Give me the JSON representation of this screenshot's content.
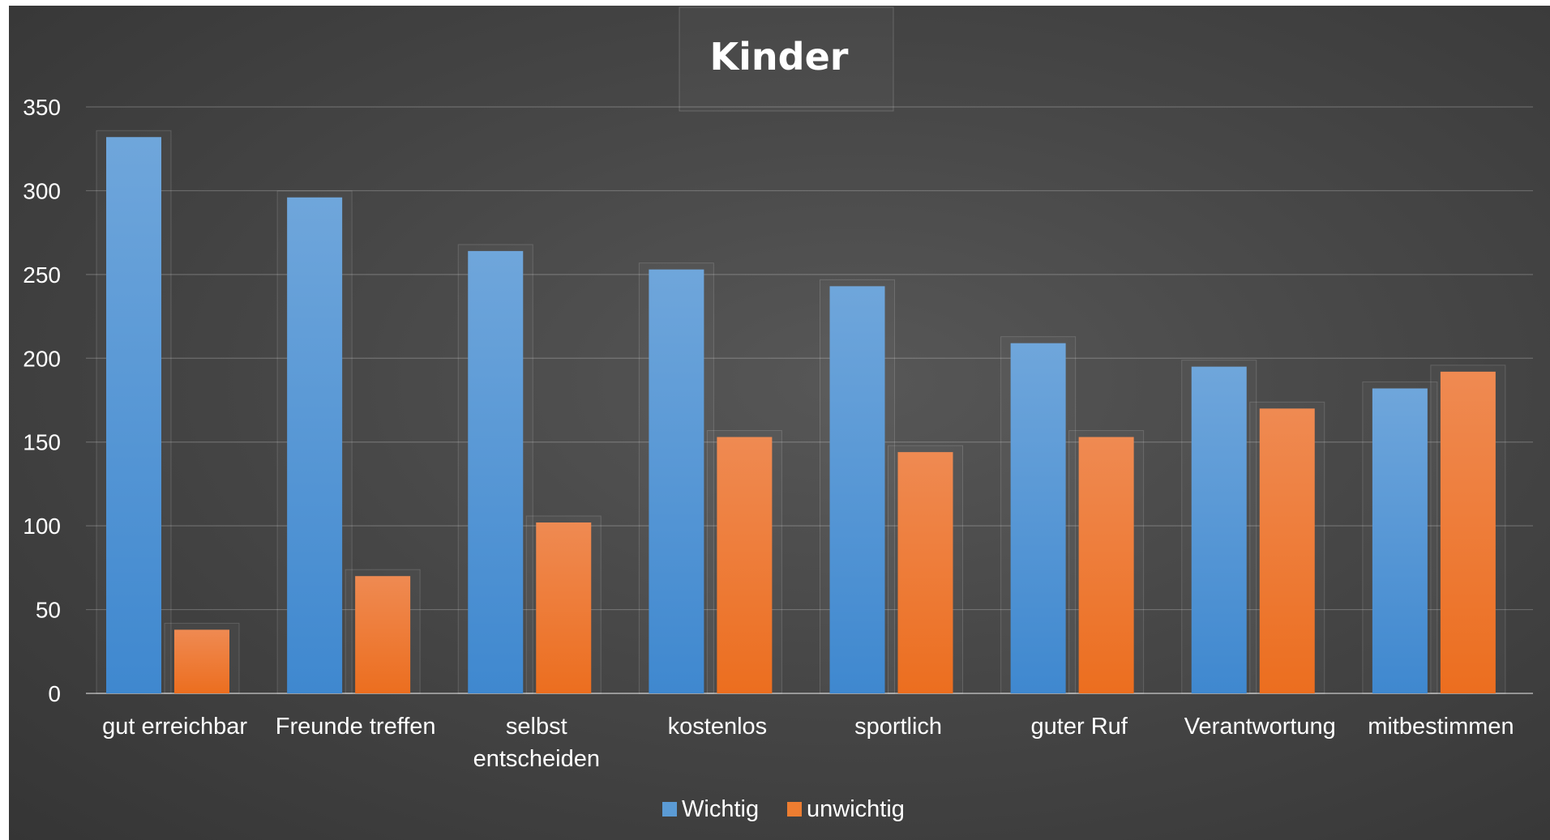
{
  "chart_data": {
    "type": "bar",
    "title": "Kinder",
    "categories": [
      [
        "gut erreichbar"
      ],
      [
        "Freunde treffen"
      ],
      [
        "selbst",
        "entscheiden"
      ],
      [
        "kostenlos"
      ],
      [
        "sportlich"
      ],
      [
        "guter Ruf"
      ],
      [
        "Verantwortung"
      ],
      [
        "mitbestimmen"
      ]
    ],
    "series": [
      {
        "name": "Wichtig",
        "color": "#5B9BD5",
        "values": [
          332,
          296,
          264,
          253,
          243,
          209,
          195,
          182
        ]
      },
      {
        "name": "unwichtig",
        "color": "#ED7D31",
        "values": [
          38,
          70,
          102,
          153,
          144,
          153,
          170,
          192
        ]
      }
    ],
    "ylim": [
      0,
      350
    ],
    "yticks": [
      0,
      50,
      100,
      150,
      200,
      250,
      300,
      350
    ],
    "grid": true,
    "legend_position": "bottom",
    "xlabel": "",
    "ylabel": ""
  }
}
